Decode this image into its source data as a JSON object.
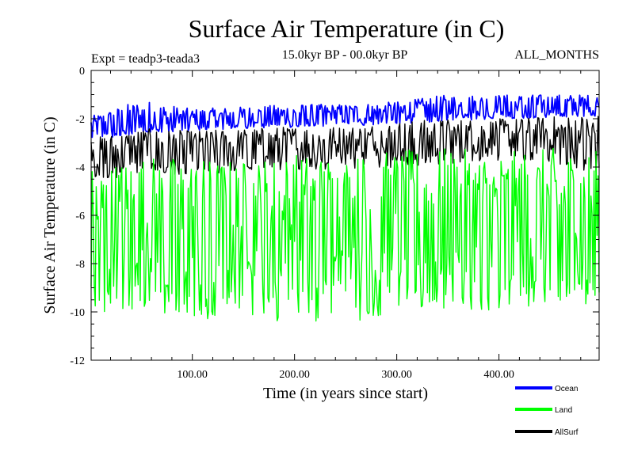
{
  "chart_data": {
    "type": "line",
    "title": "Surface Air Temperature (in C)",
    "subtitle": "15.0kyr BP - 00.0kyr BP",
    "expt_label": "Expt = teadp3-teada3",
    "months_label": "ALL_MONTHS",
    "xlabel": "Time (in years since start)",
    "ylabel": "Surface Air Temperature (in C)",
    "xlim": [
      1,
      498
    ],
    "ylim": [
      -12,
      0
    ],
    "x_ticks": [
      100,
      200,
      300,
      400
    ],
    "x_tick_labels": [
      "100.00",
      "200.00",
      "300.00",
      "400.00"
    ],
    "y_ticks": [
      0,
      -2,
      -4,
      -6,
      -8,
      -10,
      -12
    ],
    "y_tick_labels": [
      "0",
      "-2",
      "-4",
      "-6",
      "-8",
      "-10",
      "-12"
    ],
    "legend_position": "bottom-right",
    "series": [
      {
        "name": "Ocean",
        "color": "#0000ff",
        "x": [
          1,
          50,
          100,
          150,
          200,
          250,
          300,
          350,
          400,
          450,
          498
        ],
        "mean": [
          -2.4,
          -2.2,
          -2.1,
          -2.0,
          -1.95,
          -1.9,
          -1.8,
          -1.7,
          -1.6,
          -1.55,
          -1.5
        ],
        "min": [
          -2.9,
          -2.6,
          -2.5,
          -2.4,
          -2.35,
          -2.3,
          -2.2,
          -2.1,
          -2.0,
          -1.95,
          -1.9
        ],
        "max": [
          -1.9,
          -1.2,
          -1.6,
          -1.5,
          -1.4,
          -1.4,
          -1.3,
          -1.0,
          -1.0,
          -1.0,
          -1.0
        ]
      },
      {
        "name": "Land",
        "color": "#00ff00",
        "x": [
          1,
          50,
          100,
          150,
          200,
          250,
          300,
          350,
          400,
          450,
          498
        ],
        "mean": [
          -7.0,
          -6.8,
          -6.9,
          -7.0,
          -6.8,
          -6.9,
          -6.7,
          -6.6,
          -6.6,
          -6.5,
          -6.6
        ],
        "min": [
          -10.3,
          -10.0,
          -10.3,
          -10.5,
          -10.3,
          -10.6,
          -10.0,
          -9.9,
          -10.0,
          -9.7,
          -9.8
        ],
        "max": [
          -4.0,
          -3.5,
          -3.6,
          -3.7,
          -3.4,
          -3.5,
          -3.3,
          -3.2,
          -3.4,
          -3.2,
          -3.3
        ]
      },
      {
        "name": "AllSurf",
        "color": "#000000",
        "x": [
          1,
          50,
          100,
          150,
          200,
          250,
          300,
          350,
          400,
          450,
          498
        ],
        "mean": [
          -3.6,
          -3.4,
          -3.35,
          -3.3,
          -3.2,
          -3.2,
          -3.1,
          -3.0,
          -2.9,
          -2.9,
          -2.9
        ],
        "min": [
          -4.6,
          -4.3,
          -4.3,
          -4.2,
          -4.1,
          -4.1,
          -4.0,
          -3.9,
          -3.8,
          -3.8,
          -4.3
        ],
        "max": [
          -2.8,
          -2.4,
          -2.5,
          -2.4,
          -2.3,
          -2.3,
          -2.1,
          -2.0,
          -2.0,
          -1.9,
          -1.8
        ]
      }
    ]
  }
}
